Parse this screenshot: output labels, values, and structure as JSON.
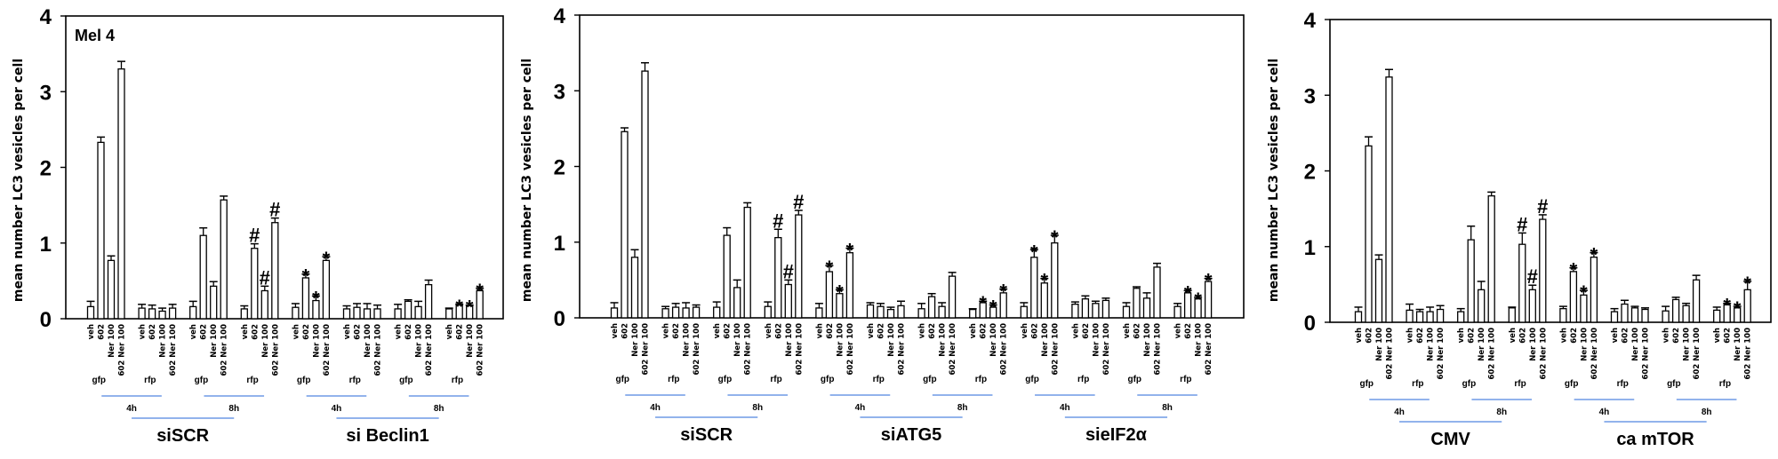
{
  "chart_data": [
    {
      "type": "bar",
      "title": "Mel 4",
      "ylabel": "mean number LC3 vesicles per cell",
      "ylim": [
        0,
        4
      ],
      "yticks": [
        "0",
        "1",
        "2",
        "3",
        "4"
      ],
      "bar_labels": [
        "veh",
        "602",
        "Ner 100",
        "602 Ner 100"
      ],
      "groups": [
        {
          "name": "siSCR",
          "times": [
            {
              "time": "4h",
              "sets": [
                {
                  "fp": "gfp",
                  "values": [
                    0.16,
                    2.33,
                    0.77,
                    3.3
                  ],
                  "errors": [
                    0.07,
                    0.07,
                    0.06,
                    0.1
                  ],
                  "marks": [
                    "",
                    "",
                    "",
                    ""
                  ]
                },
                {
                  "fp": "rfp",
                  "values": [
                    0.14,
                    0.13,
                    0.1,
                    0.14
                  ],
                  "errors": [
                    0.05,
                    0.05,
                    0.04,
                    0.05
                  ],
                  "marks": [
                    "",
                    "",
                    "",
                    ""
                  ]
                }
              ]
            },
            {
              "time": "8h",
              "sets": [
                {
                  "fp": "gfp",
                  "values": [
                    0.16,
                    1.1,
                    0.43,
                    1.57
                  ],
                  "errors": [
                    0.07,
                    0.1,
                    0.06,
                    0.05
                  ],
                  "marks": [
                    "",
                    "",
                    "",
                    ""
                  ]
                },
                {
                  "fp": "rfp",
                  "values": [
                    0.13,
                    0.93,
                    0.37,
                    1.27
                  ],
                  "errors": [
                    0.04,
                    0.06,
                    0.06,
                    0.06
                  ],
                  "marks": [
                    "",
                    "#",
                    "#",
                    "#"
                  ]
                }
              ]
            }
          ]
        },
        {
          "name": "si Beclin1",
          "times": [
            {
              "time": "4h",
              "sets": [
                {
                  "fp": "gfp",
                  "values": [
                    0.15,
                    0.54,
                    0.24,
                    0.77
                  ],
                  "errors": [
                    0.05,
                    0.05,
                    0.06,
                    0.05
                  ],
                  "marks": [
                    "",
                    "*",
                    "*",
                    "*"
                  ]
                },
                {
                  "fp": "rfp",
                  "values": [
                    0.13,
                    0.15,
                    0.13,
                    0.13
                  ],
                  "errors": [
                    0.04,
                    0.05,
                    0.07,
                    0.05
                  ],
                  "marks": [
                    "",
                    "",
                    "",
                    ""
                  ]
                }
              ]
            },
            {
              "time": "8h",
              "sets": [
                {
                  "fp": "gfp",
                  "values": [
                    0.13,
                    0.23,
                    0.16,
                    0.45
                  ],
                  "errors": [
                    0.06,
                    0.02,
                    0.07,
                    0.06
                  ],
                  "marks": [
                    "",
                    "",
                    "",
                    ""
                  ]
                },
                {
                  "fp": "rfp",
                  "values": [
                    0.13,
                    0.18,
                    0.17,
                    0.37
                  ],
                  "errors": [
                    0.01,
                    0.01,
                    0.01,
                    0.03
                  ],
                  "marks": [
                    "",
                    "*",
                    "*",
                    "*"
                  ]
                }
              ]
            }
          ]
        }
      ]
    },
    {
      "type": "bar",
      "title": "",
      "ylabel": "mean number LC3 vesicles per cell",
      "ylim": [
        0,
        4
      ],
      "yticks": [
        "0",
        "1",
        "2",
        "3",
        "4"
      ],
      "bar_labels": [
        "veh",
        "602",
        "Ner 100",
        "602 Ner 100"
      ],
      "groups": [
        {
          "name": "siSCR",
          "times": [
            {
              "time": "4h",
              "sets": [
                {
                  "fp": "gfp",
                  "values": [
                    0.13,
                    2.46,
                    0.8,
                    3.26
                  ],
                  "errors": [
                    0.07,
                    0.05,
                    0.1,
                    0.11
                  ],
                  "marks": [
                    "",
                    "",
                    "",
                    ""
                  ]
                },
                {
                  "fp": "rfp",
                  "values": [
                    0.12,
                    0.14,
                    0.13,
                    0.14
                  ],
                  "errors": [
                    0.03,
                    0.05,
                    0.07,
                    0.03
                  ],
                  "marks": [
                    "",
                    "",
                    "",
                    ""
                  ]
                }
              ]
            },
            {
              "time": "8h",
              "sets": [
                {
                  "fp": "gfp",
                  "values": [
                    0.14,
                    1.09,
                    0.4,
                    1.46
                  ],
                  "errors": [
                    0.07,
                    0.1,
                    0.1,
                    0.06
                  ],
                  "marks": [
                    "",
                    "",
                    "",
                    ""
                  ]
                },
                {
                  "fp": "rfp",
                  "values": [
                    0.15,
                    1.06,
                    0.44,
                    1.36
                  ],
                  "errors": [
                    0.06,
                    0.11,
                    0.06,
                    0.06
                  ],
                  "marks": [
                    "",
                    "#",
                    "#",
                    "#"
                  ]
                }
              ]
            }
          ]
        },
        {
          "name": "siATG5",
          "times": [
            {
              "time": "4h",
              "sets": [
                {
                  "fp": "gfp",
                  "values": [
                    0.13,
                    0.61,
                    0.32,
                    0.86
                  ],
                  "errors": [
                    0.06,
                    0.08,
                    0.05,
                    0.06
                  ],
                  "marks": [
                    "",
                    "*",
                    "*",
                    "*"
                  ]
                },
                {
                  "fp": "rfp",
                  "values": [
                    0.17,
                    0.15,
                    0.11,
                    0.16
                  ],
                  "errors": [
                    0.03,
                    0.04,
                    0.03,
                    0.06
                  ],
                  "marks": [
                    "",
                    "",
                    "",
                    ""
                  ]
                }
              ]
            },
            {
              "time": "8h",
              "sets": [
                {
                  "fp": "gfp",
                  "values": [
                    0.12,
                    0.28,
                    0.15,
                    0.55
                  ],
                  "errors": [
                    0.07,
                    0.04,
                    0.05,
                    0.05
                  ],
                  "marks": [
                    "",
                    "",
                    "",
                    ""
                  ]
                },
                {
                  "fp": "rfp",
                  "values": [
                    0.11,
                    0.2,
                    0.14,
                    0.33
                  ],
                  "errors": [
                    0.01,
                    0.02,
                    0.03,
                    0.05
                  ],
                  "marks": [
                    "",
                    "*",
                    "*",
                    "*"
                  ]
                }
              ]
            }
          ]
        },
        {
          "name": "sieIF2α",
          "times": [
            {
              "time": "4h",
              "sets": [
                {
                  "fp": "gfp",
                  "values": [
                    0.15,
                    0.8,
                    0.46,
                    0.99
                  ],
                  "errors": [
                    0.05,
                    0.1,
                    0.06,
                    0.1
                  ],
                  "marks": [
                    "",
                    "*",
                    "*",
                    "*"
                  ]
                },
                {
                  "fp": "rfp",
                  "values": [
                    0.18,
                    0.25,
                    0.19,
                    0.23
                  ],
                  "errors": [
                    0.03,
                    0.04,
                    0.03,
                    0.03
                  ],
                  "marks": [
                    "",
                    "",
                    "",
                    ""
                  ]
                }
              ]
            },
            {
              "time": "8h",
              "sets": [
                {
                  "fp": "gfp",
                  "values": [
                    0.15,
                    0.39,
                    0.26,
                    0.67
                  ],
                  "errors": [
                    0.05,
                    0.02,
                    0.07,
                    0.05
                  ],
                  "marks": [
                    "",
                    "",
                    "",
                    ""
                  ]
                },
                {
                  "fp": "rfp",
                  "values": [
                    0.15,
                    0.33,
                    0.25,
                    0.48
                  ],
                  "errors": [
                    0.04,
                    0.03,
                    0.02,
                    0.04
                  ],
                  "marks": [
                    "",
                    "*",
                    "*",
                    "*"
                  ]
                }
              ]
            }
          ]
        }
      ]
    },
    {
      "type": "bar",
      "title": "",
      "ylabel": "mean number LC3 vesicles per cell",
      "ylim": [
        0,
        4
      ],
      "yticks": [
        "0",
        "1",
        "2",
        "3",
        "4"
      ],
      "bar_labels": [
        "veh",
        "602",
        "Ner 100",
        "602 Ner 100"
      ],
      "groups": [
        {
          "name": "CMV",
          "times": [
            {
              "time": "4h",
              "sets": [
                {
                  "fp": "gfp",
                  "values": [
                    0.14,
                    2.33,
                    0.83,
                    3.24
                  ],
                  "errors": [
                    0.06,
                    0.12,
                    0.06,
                    0.1
                  ],
                  "marks": [
                    "",
                    "",
                    "",
                    ""
                  ]
                },
                {
                  "fp": "rfp",
                  "values": [
                    0.16,
                    0.14,
                    0.14,
                    0.17
                  ],
                  "errors": [
                    0.08,
                    0.03,
                    0.06,
                    0.05
                  ],
                  "marks": [
                    "",
                    "",
                    "",
                    ""
                  ]
                }
              ]
            },
            {
              "time": "8h",
              "sets": [
                {
                  "fp": "gfp",
                  "values": [
                    0.14,
                    1.09,
                    0.43,
                    1.67
                  ],
                  "errors": [
                    0.04,
                    0.18,
                    0.11,
                    0.05
                  ],
                  "marks": [
                    "",
                    "",
                    "",
                    ""
                  ]
                },
                {
                  "fp": "rfp",
                  "values": [
                    0.19,
                    1.03,
                    0.43,
                    1.36
                  ],
                  "errors": [
                    0.01,
                    0.15,
                    0.06,
                    0.06
                  ],
                  "marks": [
                    "",
                    "#",
                    "#",
                    "#"
                  ]
                }
              ]
            }
          ]
        },
        {
          "name": "ca mTOR",
          "times": [
            {
              "time": "4h",
              "sets": [
                {
                  "fp": "gfp",
                  "values": [
                    0.18,
                    0.67,
                    0.36,
                    0.86
                  ],
                  "errors": [
                    0.03,
                    0.05,
                    0.06,
                    0.06
                  ],
                  "marks": [
                    "",
                    "*",
                    "*",
                    "*"
                  ]
                },
                {
                  "fp": "rfp",
                  "values": [
                    0.14,
                    0.24,
                    0.19,
                    0.17
                  ],
                  "errors": [
                    0.04,
                    0.05,
                    0.02,
                    0.02
                  ],
                  "marks": [
                    "",
                    "",
                    "",
                    ""
                  ]
                }
              ]
            },
            {
              "time": "8h",
              "sets": [
                {
                  "fp": "gfp",
                  "values": [
                    0.15,
                    0.3,
                    0.22,
                    0.56
                  ],
                  "errors": [
                    0.06,
                    0.03,
                    0.03,
                    0.06
                  ],
                  "marks": [
                    "",
                    "",
                    "",
                    ""
                  ]
                },
                {
                  "fp": "rfp",
                  "values": [
                    0.16,
                    0.23,
                    0.19,
                    0.43
                  ],
                  "errors": [
                    0.04,
                    0.02,
                    0.02,
                    0.11
                  ],
                  "marks": [
                    "",
                    "*",
                    "*",
                    "*"
                  ]
                }
              ]
            }
          ]
        }
      ]
    }
  ],
  "colors": {
    "bar_fill": "#ffffff",
    "stroke": "#000000",
    "bracket": "#6f9ae6"
  }
}
